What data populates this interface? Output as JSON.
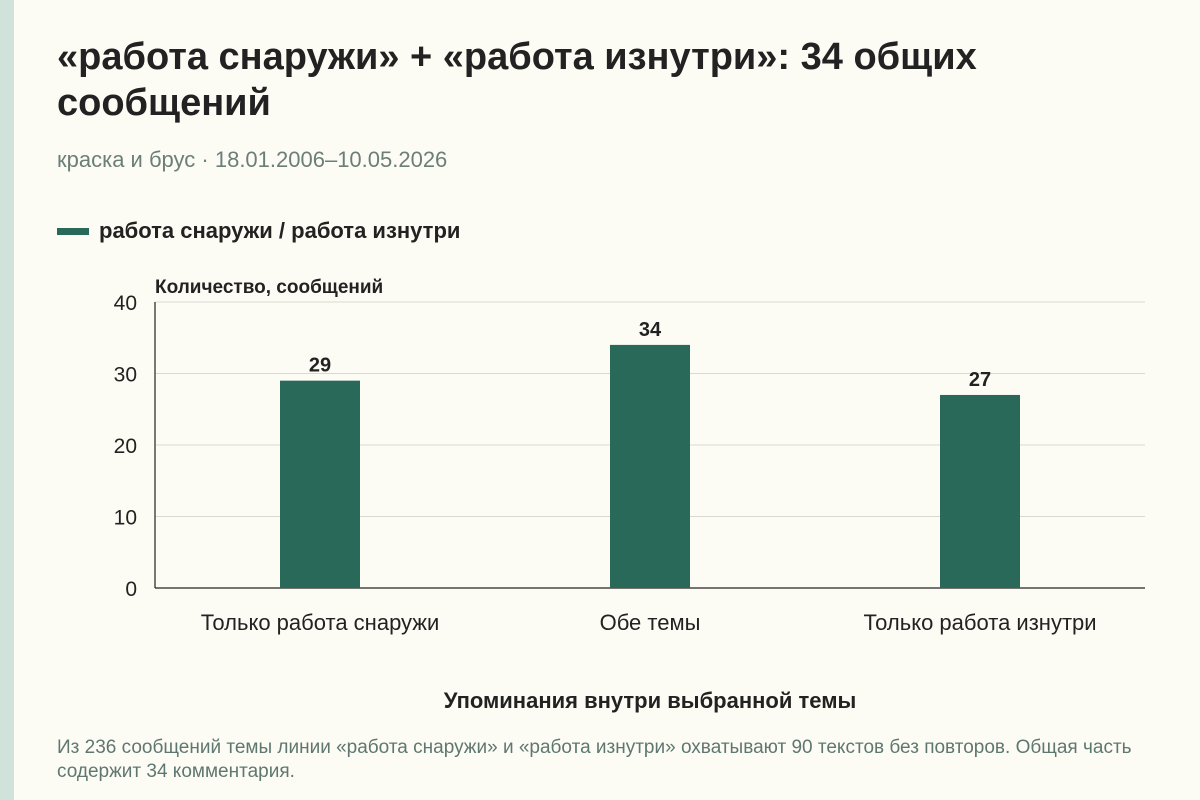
{
  "title": "«работа снаружи» + «работа изнутри»: 34 общих сообщений",
  "subtitle": "краска и брус · 18.01.2006–10.05.2026",
  "colors": {
    "background": "#fdfcf4",
    "accent_strip": "#cfe3da",
    "bar": "#28695a",
    "text": "#222222",
    "muted_text": "#6b7f78"
  },
  "chart_data": {
    "type": "bar",
    "categories": [
      "Только работа снаружи",
      "Обе темы",
      "Только работа изнутри"
    ],
    "series": [
      {
        "name": "работа снаружи / работа изнутри",
        "values": [
          29,
          34,
          27
        ]
      }
    ],
    "data_labels": [
      "29",
      "34",
      "27"
    ],
    "ylabel": "Количество, сообщений",
    "xlabel": "Упоминания внутри выбранной темы",
    "ylim": [
      0,
      40
    ],
    "yticks": [
      0,
      10,
      20,
      30,
      40
    ],
    "grid": true,
    "legend_position": "top-left"
  },
  "caption": "Из 236 сообщений темы линии «работа снаружи» и «работа изнутри» охватывают 90 текстов без повторов. Общая часть содержит 34 комментария."
}
